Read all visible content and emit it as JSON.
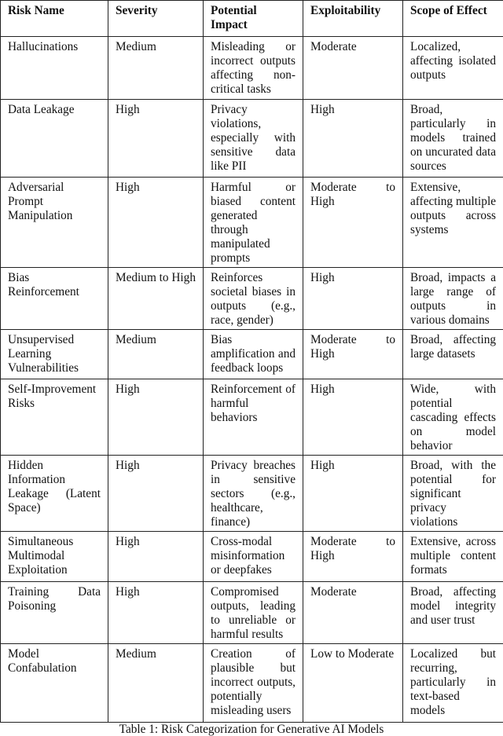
{
  "table": {
    "headers": [
      "Risk Name",
      "Severity",
      "Potential Impact",
      "Exploitability",
      "Scope of Effect"
    ],
    "rows": [
      [
        "Hallucinations",
        "Medium",
        "Misleading or incorrect outputs affecting non-critical tasks",
        "Moderate",
        "Localized, affecting isolated outputs"
      ],
      [
        "Data Leakage",
        "High",
        "Privacy violations, especially with sensitive data like PII",
        "High",
        "Broad, particularly in models trained on uncurated data sources"
      ],
      [
        "Adversarial Prompt Manipulation",
        "High",
        "Harmful or biased content generated through manipulated prompts",
        "Moderate to High",
        "Extensive, affecting multiple outputs across systems"
      ],
      [
        "Bias Reinforcement",
        "Medium to High",
        "Reinforces societal biases in outputs (e.g., race, gender)",
        "High",
        "Broad, impacts a large range of outputs in various domains"
      ],
      [
        "Unsupervised Learning Vulnerabilities",
        "Medium",
        "Bias amplification and feedback loops",
        "Moderate to High",
        "Broad, affecting large datasets"
      ],
      [
        "Self-Improvement Risks",
        "High",
        "Reinforcement of harmful behaviors",
        "High",
        "Wide, with potential cascading effects on model behavior"
      ],
      [
        "Hidden Information Leakage (Latent Space)",
        "High",
        "Privacy breaches in sensitive sectors (e.g., healthcare, finance)",
        "High",
        "Broad, with the potential for significant privacy violations"
      ],
      [
        "Simultaneous Multimodal Exploitation",
        "High",
        "Cross-modal misinformation or deepfakes",
        "Moderate to High",
        "Extensive, across multiple content formats"
      ],
      [
        "Training Data Poisoning",
        "High",
        "Compromised outputs, leading to unreliable or harmful results",
        "Moderate",
        "Broad, affecting model integrity and user trust"
      ],
      [
        "Model Confabulation",
        "Medium",
        "Creation of plausible but incorrect outputs, potentially misleading users",
        "Low to Moderate",
        "Localized but recurring, particularly in text-based models"
      ]
    ]
  },
  "caption": "Table 1: Risk Categorization for Generative AI Models"
}
